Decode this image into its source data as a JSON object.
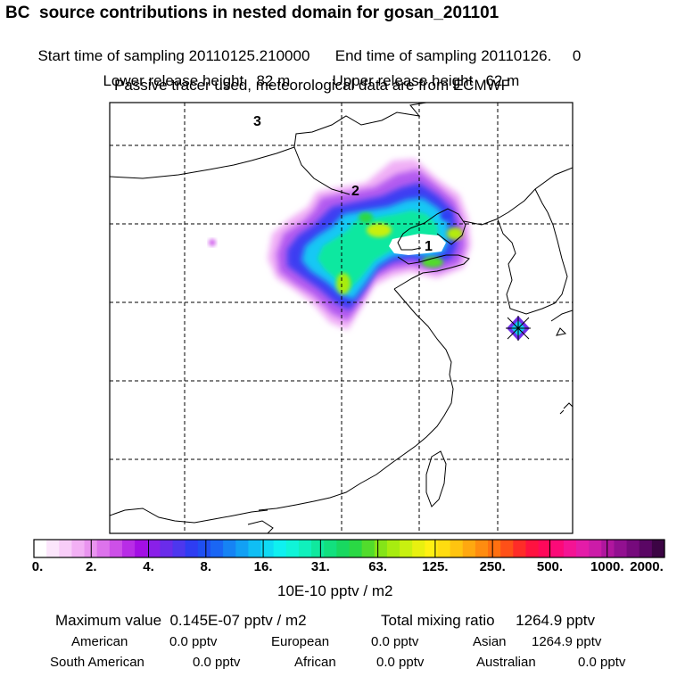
{
  "header": {
    "title": "BC  source contributions in nested domain for gosan_201101",
    "start_label": "Start time of sampling 20110125.210000",
    "end_label": "End time of sampling 20110126.     0",
    "lower_label": "Lower release height   82 m",
    "upper_label": "Upper release height   62 m",
    "tracer_note": "Passive tracer used, meteorological data are from ECMWF"
  },
  "map": {
    "markers": [
      "1",
      "2",
      "3"
    ],
    "receptor_icon": "star-marker-icon"
  },
  "colorbar": {
    "labels": [
      "0.",
      "2.",
      "4.",
      "8.",
      "16.",
      "31.",
      "63.",
      "125.",
      "250.",
      "500.",
      "1000.",
      "2000."
    ],
    "colors": [
      "#ffffff",
      "#fce6fc",
      "#f8cdf8",
      "#f2b0f4",
      "#e994ef",
      "#dd73ec",
      "#cd50e8",
      "#b82de6",
      "#a30fe4",
      "#8a20e8",
      "#6a2cea",
      "#4d37ee",
      "#2e3df2",
      "#1f4ff2",
      "#1a66f4",
      "#1683f4",
      "#12a0f4",
      "#10bef4",
      "#0fdaf4",
      "#0ff0f0",
      "#10f4d8",
      "#10f0bc",
      "#10e89e",
      "#12e07e",
      "#18d860",
      "#2ad844",
      "#52dc2c",
      "#84e418",
      "#a8ec10",
      "#c8f010",
      "#e8f010",
      "#fff012",
      "#ffdc10",
      "#ffc410",
      "#ffa810",
      "#ff8c10",
      "#ff7010",
      "#ff5018",
      "#ff2c28",
      "#ff1240",
      "#ff085a",
      "#fc0a78",
      "#f41494",
      "#e41ca8",
      "#cc1ca8",
      "#b0169e",
      "#921090",
      "#760a7c",
      "#5a0664",
      "#3c0444"
    ],
    "units": "10E-10 pptv / m2"
  },
  "stats": {
    "max_label": "Maximum value  0.145E-07 pptv / m2",
    "total_label": "Total mixing ratio     1264.9 pptv",
    "regions_row1": [
      {
        "name": "American",
        "value": "0.0 pptv"
      },
      {
        "name": "European",
        "value": "0.0 pptv"
      },
      {
        "name": "Asian",
        "value": "1264.9 pptv"
      }
    ],
    "regions_row2": [
      {
        "name": "South American",
        "value": "0.0 pptv"
      },
      {
        "name": "African",
        "value": "0.0 pptv"
      },
      {
        "name": "Australian",
        "value": "0.0 pptv"
      }
    ]
  }
}
